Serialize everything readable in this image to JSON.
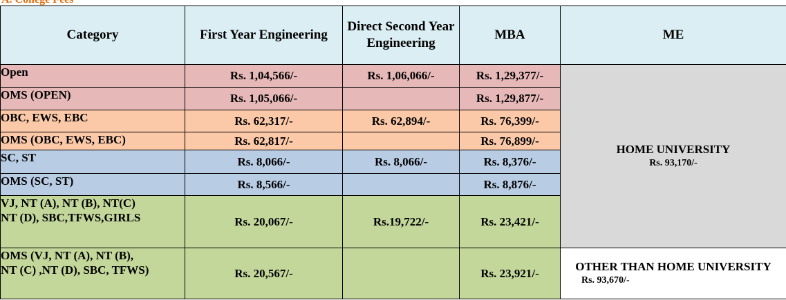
{
  "section_title": "A. College Fees",
  "headers": {
    "category": "Category",
    "fye": "First Year Engineering",
    "dse": "Direct Second Year Engineering",
    "mba": "MBA",
    "me": "ME"
  },
  "rows": [
    {
      "category": "Open",
      "fye": "Rs. 1,04,566/-",
      "dse": "Rs. 1,06,066/-",
      "mba": "Rs. 1,29,377/-"
    },
    {
      "category": "OMS (OPEN)",
      "fye": "Rs. 1,05,066/-",
      "dse": "",
      "mba": "Rs. 1,29,877/-"
    },
    {
      "category": "OBC, EWS, EBC",
      "fye": "Rs. 62,317/-",
      "dse": "Rs. 62,894/-",
      "mba": "Rs. 76,399/-"
    },
    {
      "category": "OMS (OBC, EWS, EBC)",
      "fye": "Rs. 62,817/-",
      "dse": "",
      "mba": "Rs. 76,899/-"
    },
    {
      "category": "SC, ST",
      "fye": "Rs. 8,066/-",
      "dse": "Rs. 8,066/-",
      "mba": "Rs. 8,376/-"
    },
    {
      "category": "OMS (SC, ST)",
      "fye": "Rs. 8,566/-",
      "dse": "",
      "mba": "Rs. 8,876/-"
    },
    {
      "category_line1": "VJ, NT (A), NT (B),  NT(C)",
      "category_line2": "NT (D), SBC,TFWS,GIRLS",
      "fye": "Rs. 20,067/-",
      "dse": "Rs.19,722/-",
      "mba": "Rs. 23,421/-"
    },
    {
      "category_line1": "OMS (VJ, NT (A), NT (B),",
      "category_line2": "NT (C) ,NT (D), SBC, TFWS)",
      "fye": "Rs. 20,567/-",
      "dse": "",
      "mba": "Rs. 23,921/-"
    }
  ],
  "me": {
    "home_label": "HOME UNIVERSITY",
    "home_fee": "Rs. 93,170/-",
    "other_label": "OTHER THAN HOME UNIVERSITY",
    "other_fee": "Rs. 93,670/-"
  },
  "colors": {
    "header": "#dbeef3",
    "open_rows": "#e6b9b8",
    "obc_rows": "#fbc9a8",
    "sc_rows": "#b8cce4",
    "vj_rows": "#c4d79b",
    "me_home": "#d9d9d9",
    "title": "#e36c09"
  }
}
